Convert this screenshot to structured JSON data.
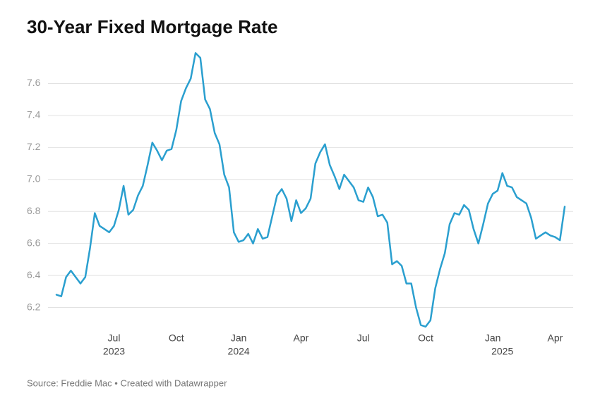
{
  "chart_data": {
    "type": "line",
    "title": "30-Year Fixed Mortgage Rate",
    "source": "Source: Freddie Mac • Created with Datawrapper",
    "categories": [
      null,
      null,
      null,
      null,
      null,
      null,
      null,
      null,
      null,
      null,
      null,
      null,
      "Jul",
      null,
      null,
      null,
      null,
      null,
      null,
      null,
      null,
      null,
      null,
      null,
      null,
      "Oct",
      null,
      null,
      null,
      null,
      null,
      null,
      null,
      null,
      null,
      null,
      null,
      null,
      "Jan",
      null,
      null,
      null,
      null,
      null,
      null,
      null,
      null,
      null,
      null,
      null,
      null,
      "Apr",
      null,
      null,
      null,
      null,
      null,
      null,
      null,
      null,
      null,
      null,
      null,
      null,
      "Jul",
      null,
      null,
      null,
      null,
      null,
      null,
      null,
      null,
      null,
      null,
      null,
      null,
      "Oct",
      null,
      null,
      null,
      null,
      null,
      null,
      null,
      null,
      null,
      null,
      null,
      null,
      null,
      "Jan",
      null,
      null,
      null,
      null,
      null,
      null,
      null,
      null,
      null,
      null,
      null,
      null,
      "Apr",
      null,
      null
    ],
    "category_years": [
      null,
      null,
      null,
      null,
      null,
      null,
      null,
      null,
      null,
      null,
      null,
      null,
      "2023",
      null,
      null,
      null,
      null,
      null,
      null,
      null,
      null,
      null,
      null,
      null,
      null,
      null,
      null,
      null,
      null,
      null,
      null,
      null,
      null,
      null,
      null,
      null,
      null,
      null,
      "2024",
      null,
      null,
      null,
      null,
      null,
      null,
      null,
      null,
      null,
      null,
      null,
      null,
      null,
      null,
      null,
      null,
      null,
      null,
      null,
      null,
      null,
      null,
      null,
      null,
      null,
      null,
      null,
      null,
      null,
      null,
      null,
      null,
      null,
      null,
      null,
      null,
      null,
      null,
      null,
      null,
      null,
      null,
      null,
      null,
      null,
      null,
      null,
      null,
      null,
      null,
      null,
      null,
      null,
      null,
      "2025",
      null,
      null,
      null,
      null,
      null,
      null,
      null,
      null,
      null,
      null,
      null,
      null,
      null,
      null,
      null
    ],
    "series": [
      {
        "name": "30-Year Fixed Mortgage Rate",
        "color": "#2a9fcf",
        "values": [
          6.28,
          6.27,
          6.39,
          6.43,
          6.39,
          6.35,
          6.39,
          6.57,
          6.79,
          6.71,
          6.69,
          6.67,
          6.71,
          6.81,
          6.96,
          6.78,
          6.81,
          6.9,
          6.96,
          7.09,
          7.23,
          7.18,
          7.12,
          7.18,
          7.19,
          7.31,
          7.49,
          7.57,
          7.63,
          7.79,
          7.76,
          7.5,
          7.44,
          7.29,
          7.22,
          7.03,
          6.95,
          6.67,
          6.61,
          6.62,
          6.66,
          6.6,
          6.69,
          6.63,
          6.64,
          6.77,
          6.9,
          6.94,
          6.88,
          6.74,
          6.87,
          6.79,
          6.82,
          6.88,
          7.1,
          7.17,
          7.22,
          7.09,
          7.02,
          6.94,
          7.03,
          6.99,
          6.95,
          6.87,
          6.86,
          6.95,
          6.89,
          6.77,
          6.78,
          6.73,
          6.47,
          6.49,
          6.46,
          6.35,
          6.35,
          6.2,
          6.09,
          6.08,
          6.12,
          6.32,
          6.44,
          6.54,
          6.72,
          6.79,
          6.78,
          6.84,
          6.81,
          6.69,
          6.6,
          6.72,
          6.85,
          6.91,
          6.93,
          7.04,
          6.96,
          6.95,
          6.89,
          6.87,
          6.85,
          6.76,
          6.63,
          6.65,
          6.67,
          6.65,
          6.64,
          6.62,
          6.83
        ]
      }
    ],
    "ylim": [
      6.0,
      7.8
    ],
    "yticks": [
      {
        "value": 6.2,
        "label": "6.2"
      },
      {
        "value": 6.4,
        "label": "6.4"
      },
      {
        "value": 6.6,
        "label": "6.6"
      },
      {
        "value": 6.8,
        "label": "6.8"
      },
      {
        "value": 7.0,
        "label": "7.0"
      },
      {
        "value": 7.2,
        "label": "7.2"
      },
      {
        "value": 7.4,
        "label": "7.4"
      },
      {
        "value": 7.6,
        "label": "7.6"
      }
    ],
    "grid": true
  }
}
